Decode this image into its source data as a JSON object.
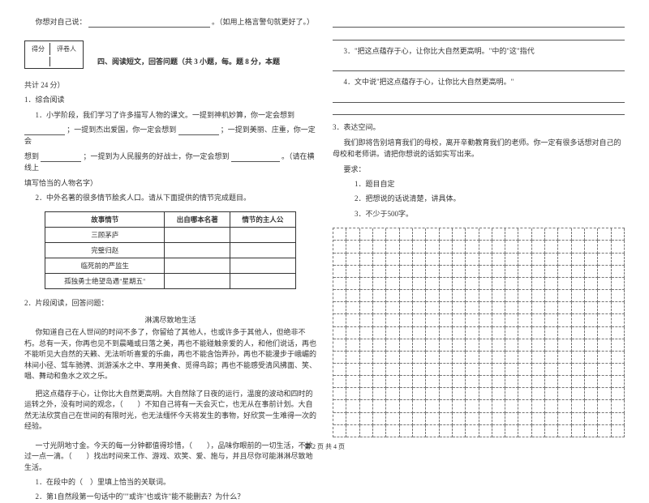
{
  "left": {
    "self_say_prefix": "你想对自己说：",
    "self_say_suffix": "。（如用上格言警句就更好了。）",
    "score_labels": {
      "score": "得分",
      "grader": "评卷人"
    },
    "section4_title": "四、阅读短文，回答问题（共 3 小题，每。题 8 分，本题",
    "section4_total": "共计 24 分）",
    "q1_title": "1．综合阅读",
    "q1_p1a": "1．小学阶段，我们学习了许多描写人物的课文。一提到神机妙算，你一定会想到",
    "q1_p1b": "；一提到杰出爱国，你一定会想到",
    "q1_p1c": "；一提到美丽、庄重，你一定会",
    "q1_p1d": "想到",
    "q1_p1e": "；一提到为人民服务的好战士，你一定会想到",
    "q1_p1f": "。（请在横线上",
    "q1_p1g": "填写恰当的人物名字）",
    "q1_p2": "2．中外名著的很多情节脍炙人口。请从下面提供的情节完成题目。",
    "table": {
      "headers": [
        "故事情节",
        "出自哪本名著",
        "情节的主人公"
      ],
      "rows": [
        [
          "三顾茅庐",
          "",
          ""
        ],
        [
          "完璧归赵",
          "",
          ""
        ],
        [
          "临死前的严监生",
          "",
          ""
        ],
        [
          "孤独勇士绝望岛遇\"星期五\"",
          "",
          ""
        ]
      ]
    },
    "q2_title": "2．片段阅读，回答问题：",
    "passage_title": "淋漓尽致地生活",
    "passage_p1": "你知道自己在人世间的时间不多了，你留给了其他人，也或许多于其他人，但绝非不朽。总有一天，你再也见不到晨曦或日落之美，再也不能碰触亲爱的人，和他们说话，再也不能听见大自然的天籁、无法听听喜爱的乐曲，再也不能含饴弄孙，再也不能漫步于峨嵋的林间小径、驾车驰骋、浏游溪水之中、享用美食、觅得鸟踪；再也不能感受清风拂面、笑、唱、舞动和鱼水之欢之乐。",
    "passage_p2": "把这点蕴存于心，让你比大自然更高明。大自然除了日夜的运行，温度的波动和四时的运转之外，没有时间的观念，（　　）不知自己将有一天会灭亡，也无从在事前计划。大自然无法欣赏自己在世间的有限时光，也无法缅怀今天将发生的事物，好欣赏一生难得一次的经验。",
    "passage_p3": "一寸光阴地寸金。今天的每一分钟都值得珍惜，（　　），品味你眼前的一切生活，不放过一点一滴。（　　）找出时间来工作、游戏、欢笑、爱、施与，并且尽你可能淋淋尽致地生活。",
    "sub_q1": "1．在段中的（　）里填上恰当的关联词。",
    "sub_q2": "2．第1自然段第一句话中的\"\"或许\"也或许\"能不能删去？为什么？"
  },
  "right": {
    "q3_a": "3．\"把这点蕴存于心，让你比大自然更高明。\"中的\"这\"指代",
    "q4": "4．文中说\"把这点蕴存于心，让你比大自然更高明。\"",
    "q3_title": "3．表达空间。",
    "q3_body": "我们即将告别培育我们的母校，离开辛勤教育我们的老师。你一定有很多话想对自己的母校和老师讲。请把你想说的话如实写出来。",
    "req_label": "要求：",
    "req1": "1．题目自定",
    "req2": "2．把想说的话说清楚，讲具体。",
    "req3": "3．不少于500字。",
    "grid": {
      "cols": 22,
      "rows": 17
    }
  },
  "footer": "第 2 页  共 4 页"
}
